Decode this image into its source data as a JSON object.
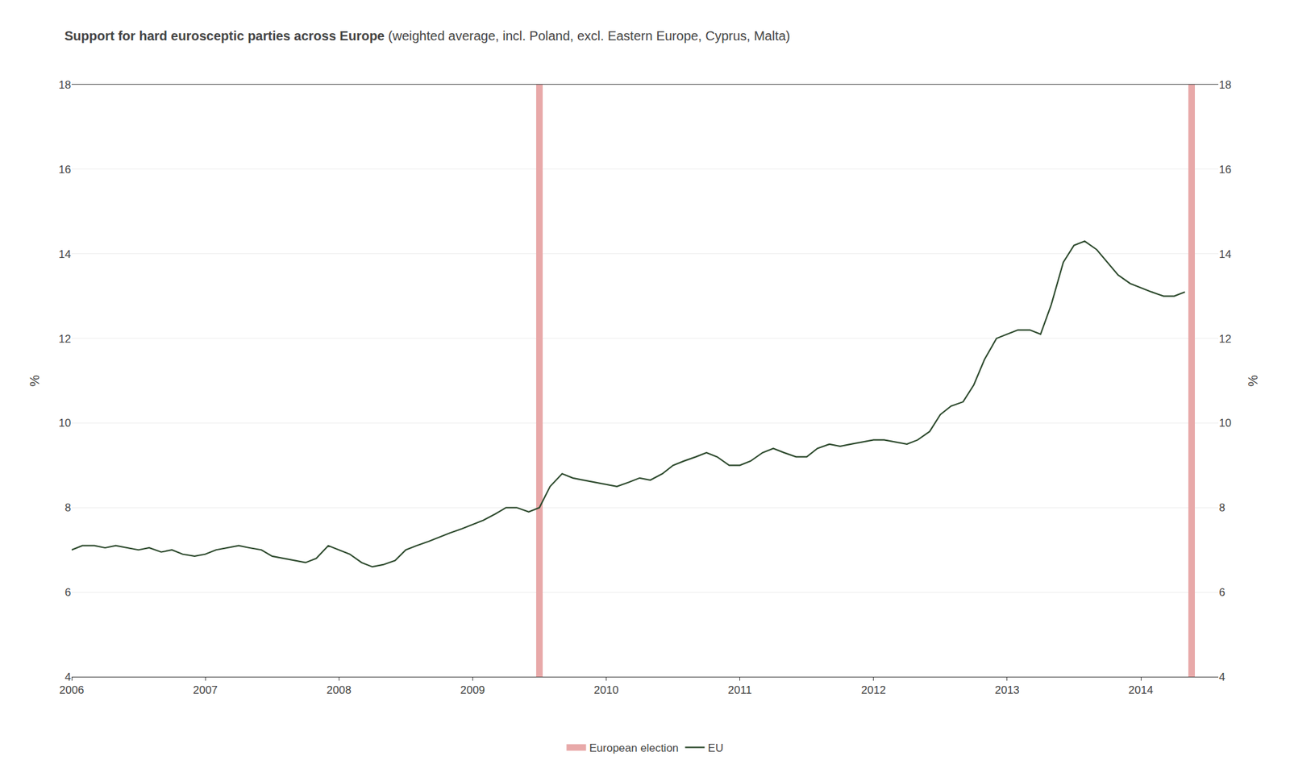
{
  "chart_data": {
    "type": "line",
    "title": "Support for hard eurosceptic parties across Europe",
    "subtitle": "(weighted average, incl. Poland, excl. Eastern Europe, Cyprus, Malta)",
    "ylabel": "%",
    "y2label": "%",
    "xlim": [
      2006.0,
      2014.58
    ],
    "xticks": [
      2006,
      2007,
      2008,
      2009,
      2010,
      2011,
      2012,
      2013,
      2014
    ],
    "ylim": [
      4,
      18
    ],
    "yticks": [
      4,
      6,
      8,
      10,
      12,
      14,
      16,
      18
    ],
    "y2lim": [
      4,
      18
    ],
    "y2ticks": [
      4,
      6,
      8,
      10,
      12,
      14,
      16,
      18
    ],
    "grid": true,
    "legend": "bottom",
    "series": [
      {
        "name": "European election",
        "type": "vline",
        "color": "#e8a9a9",
        "x": [
          2009.5,
          2014.38
        ]
      },
      {
        "name": "EU",
        "type": "line",
        "color": "#2d4a2d",
        "x": [
          2006.0,
          2006.08,
          2006.17,
          2006.25,
          2006.33,
          2006.42,
          2006.5,
          2006.58,
          2006.67,
          2006.75,
          2006.83,
          2006.92,
          2007.0,
          2007.08,
          2007.17,
          2007.25,
          2007.33,
          2007.42,
          2007.5,
          2007.58,
          2007.67,
          2007.75,
          2007.83,
          2007.92,
          2008.0,
          2008.08,
          2008.17,
          2008.25,
          2008.33,
          2008.42,
          2008.5,
          2008.58,
          2008.67,
          2008.75,
          2008.83,
          2008.92,
          2009.0,
          2009.08,
          2009.17,
          2009.25,
          2009.33,
          2009.42,
          2009.5,
          2009.58,
          2009.67,
          2009.75,
          2009.83,
          2009.92,
          2010.0,
          2010.08,
          2010.17,
          2010.25,
          2010.33,
          2010.42,
          2010.5,
          2010.58,
          2010.67,
          2010.75,
          2010.83,
          2010.92,
          2011.0,
          2011.08,
          2011.17,
          2011.25,
          2011.33,
          2011.42,
          2011.5,
          2011.58,
          2011.67,
          2011.75,
          2011.83,
          2011.92,
          2012.0,
          2012.08,
          2012.17,
          2012.25,
          2012.33,
          2012.42,
          2012.5,
          2012.58,
          2012.67,
          2012.75,
          2012.83,
          2012.92,
          2013.0,
          2013.08,
          2013.17,
          2013.25,
          2013.33,
          2013.42,
          2013.5,
          2013.58,
          2013.67,
          2013.75,
          2013.83,
          2013.92,
          2014.0,
          2014.08,
          2014.17,
          2014.25,
          2014.33
        ],
        "values": [
          7.0,
          7.1,
          7.1,
          7.05,
          7.1,
          7.05,
          7.0,
          7.05,
          6.95,
          7.0,
          6.9,
          6.85,
          6.9,
          7.0,
          7.05,
          7.1,
          7.05,
          7.0,
          6.85,
          6.8,
          6.75,
          6.7,
          6.8,
          7.1,
          7.0,
          6.9,
          6.7,
          6.6,
          6.65,
          6.75,
          7.0,
          7.1,
          7.2,
          7.3,
          7.4,
          7.5,
          7.6,
          7.7,
          7.85,
          8.0,
          8.0,
          7.9,
          8.0,
          8.5,
          8.8,
          8.7,
          8.65,
          8.6,
          8.55,
          8.5,
          8.6,
          8.7,
          8.65,
          8.8,
          9.0,
          9.1,
          9.2,
          9.3,
          9.2,
          9.0,
          9.0,
          9.1,
          9.3,
          9.4,
          9.3,
          9.2,
          9.2,
          9.4,
          9.5,
          9.45,
          9.5,
          9.55,
          9.6,
          9.6,
          9.55,
          9.5,
          9.6,
          9.8,
          10.2,
          10.4,
          10.5,
          10.9,
          11.5,
          12.0,
          12.1,
          12.2,
          12.2,
          12.1,
          12.8,
          13.8,
          14.2,
          14.3,
          14.1,
          13.8,
          13.5,
          13.3,
          13.2,
          13.1,
          13.0,
          13.0,
          13.1
        ]
      }
    ]
  }
}
